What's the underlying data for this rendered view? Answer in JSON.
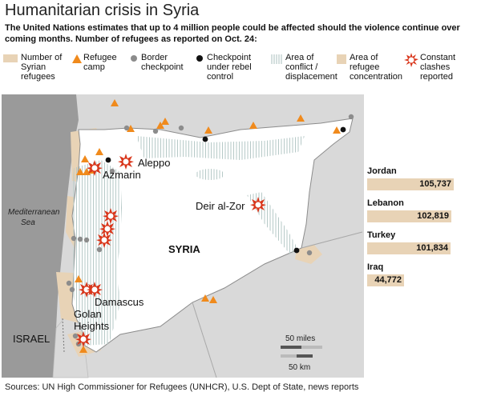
{
  "title": "Humanitarian crisis in Syria",
  "subtitle": "The United Nations estimates that up to 4 million people could be affected should the violence continue over coming months. Number of refugees as reported on Oct. 24:",
  "legend": [
    {
      "label": "Number of Syrian refugees",
      "symbol": "refugee-area-swatch"
    },
    {
      "label": "Refugee camp",
      "symbol": "refugee-camp-triangle"
    },
    {
      "label": "Border checkpoint",
      "symbol": "border-checkpoint-dot"
    },
    {
      "label": "Checkpoint under rebel control",
      "symbol": "rebel-checkpoint-dot"
    },
    {
      "label": "Area of conflict / displacement",
      "symbol": "conflict-hatch-swatch"
    },
    {
      "label": "Area of refugee concentration",
      "symbol": "concentration-swatch"
    },
    {
      "label": "Constant clashes reported",
      "symbol": "clash-burst"
    }
  ],
  "map_labels": {
    "syria": "SYRIA",
    "aleppo": "Aleppo",
    "azmarin": "Azmarin",
    "deir": "Deir al-Zor",
    "damascus": "Damascus",
    "golan": "Golan Heights",
    "israel": "ISRAEL",
    "sea": "Mediterranean Sea"
  },
  "scale": {
    "miles": "50 miles",
    "km": "50 km"
  },
  "chart_data": {
    "type": "bar",
    "categories": [
      "Jordan",
      "Lebanon",
      "Turkey",
      "Iraq"
    ],
    "values": [
      105737,
      102819,
      101834,
      44772
    ],
    "value_labels": [
      "105,737",
      "102,819",
      "101,834",
      "44,772"
    ]
  },
  "colors": {
    "refugee": "#e8d3b6",
    "camp": "#f08a1c",
    "border_checkpoint": "#8c8c8c",
    "rebel_checkpoint": "#111111",
    "conflict_hatch": "#b6c9c7",
    "clash": "#d9361b",
    "neighbor_land": "#d9d9d9",
    "sea": "#9a9a9a"
  },
  "source": "Sources: UN High Commissioner for Refugees (UNHCR), U.S. Dept of State, news reports"
}
